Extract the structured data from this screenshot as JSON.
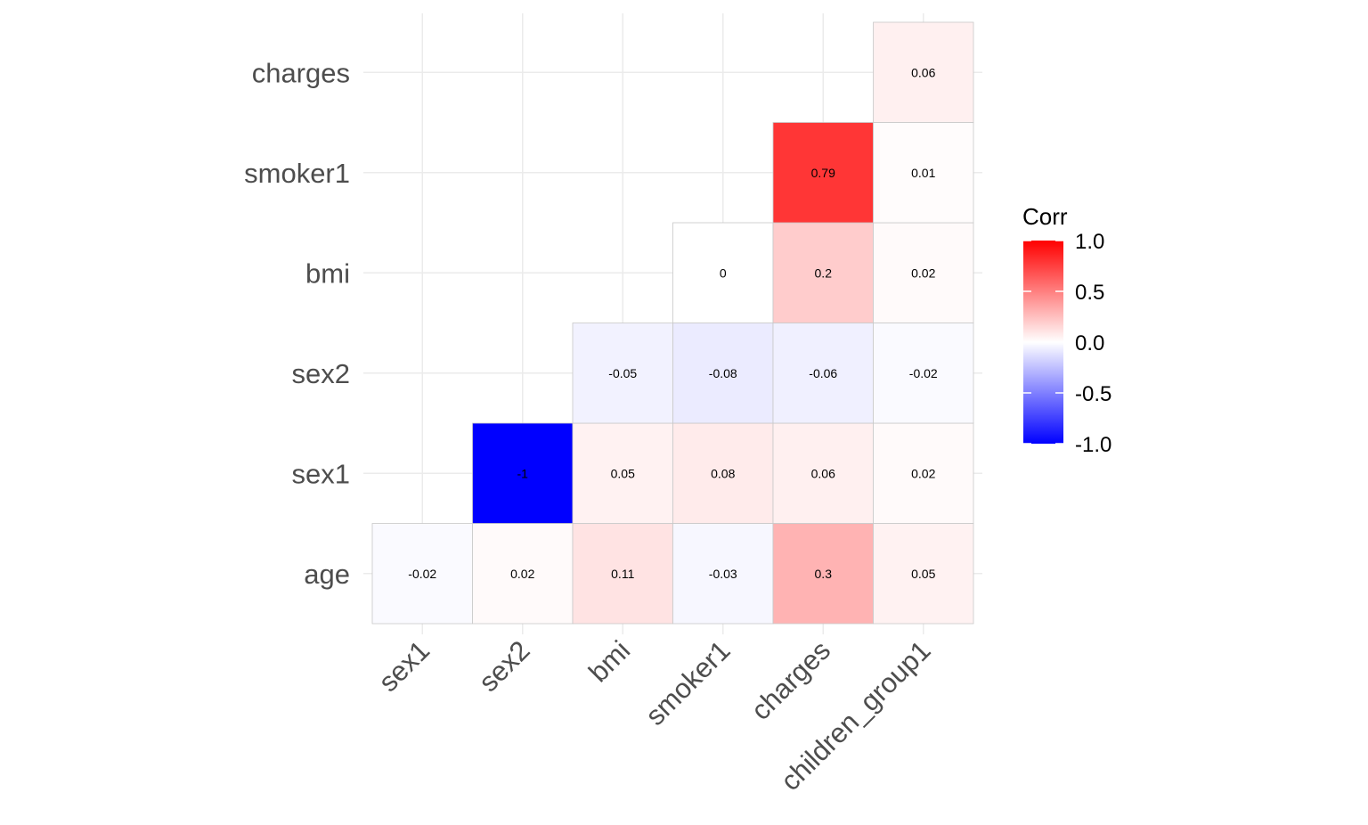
{
  "chart_data": {
    "type": "heatmap",
    "title": "",
    "xlabel": "",
    "ylabel": "",
    "x_categories": [
      "sex1",
      "sex2",
      "bmi",
      "smoker1",
      "charges",
      "children_group1"
    ],
    "y_categories": [
      "age",
      "sex1",
      "sex2",
      "bmi",
      "smoker1",
      "charges"
    ],
    "cells": [
      {
        "x": "sex1",
        "y": "age",
        "value": -0.02,
        "label": "-0.02"
      },
      {
        "x": "sex2",
        "y": "age",
        "value": 0.02,
        "label": "0.02"
      },
      {
        "x": "bmi",
        "y": "age",
        "value": 0.11,
        "label": "0.11"
      },
      {
        "x": "smoker1",
        "y": "age",
        "value": -0.03,
        "label": "-0.03"
      },
      {
        "x": "charges",
        "y": "age",
        "value": 0.3,
        "label": "0.3"
      },
      {
        "x": "children_group1",
        "y": "age",
        "value": 0.05,
        "label": "0.05"
      },
      {
        "x": "sex2",
        "y": "sex1",
        "value": -1,
        "label": "-1"
      },
      {
        "x": "bmi",
        "y": "sex1",
        "value": 0.05,
        "label": "0.05"
      },
      {
        "x": "smoker1",
        "y": "sex1",
        "value": 0.08,
        "label": "0.08"
      },
      {
        "x": "charges",
        "y": "sex1",
        "value": 0.06,
        "label": "0.06"
      },
      {
        "x": "children_group1",
        "y": "sex1",
        "value": 0.02,
        "label": "0.02"
      },
      {
        "x": "bmi",
        "y": "sex2",
        "value": -0.05,
        "label": "-0.05"
      },
      {
        "x": "smoker1",
        "y": "sex2",
        "value": -0.08,
        "label": "-0.08"
      },
      {
        "x": "charges",
        "y": "sex2",
        "value": -0.06,
        "label": "-0.06"
      },
      {
        "x": "children_group1",
        "y": "sex2",
        "value": -0.02,
        "label": "-0.02"
      },
      {
        "x": "smoker1",
        "y": "bmi",
        "value": 0,
        "label": "0"
      },
      {
        "x": "charges",
        "y": "bmi",
        "value": 0.2,
        "label": "0.2"
      },
      {
        "x": "children_group1",
        "y": "bmi",
        "value": 0.02,
        "label": "0.02"
      },
      {
        "x": "charges",
        "y": "smoker1",
        "value": 0.79,
        "label": "0.79"
      },
      {
        "x": "children_group1",
        "y": "smoker1",
        "value": 0.01,
        "label": "0.01"
      },
      {
        "x": "children_group1",
        "y": "charges",
        "value": 0.06,
        "label": "0.06"
      }
    ],
    "legend": {
      "title": "Corr",
      "position": "right",
      "range": [
        -1,
        1
      ],
      "breaks": [
        1.0,
        0.5,
        0.0,
        -0.5,
        -1.0
      ],
      "break_labels": [
        "1.0",
        "0.5",
        "0.0",
        "-0.5",
        "-1.0"
      ]
    },
    "colors": {
      "low": "#0000ff",
      "mid": "#ffffff",
      "high": "#ff0000",
      "grid": "#ebebeb",
      "tile_border": "#c8c8c8",
      "axis_text": "#4d4d4d"
    },
    "grid": true
  }
}
